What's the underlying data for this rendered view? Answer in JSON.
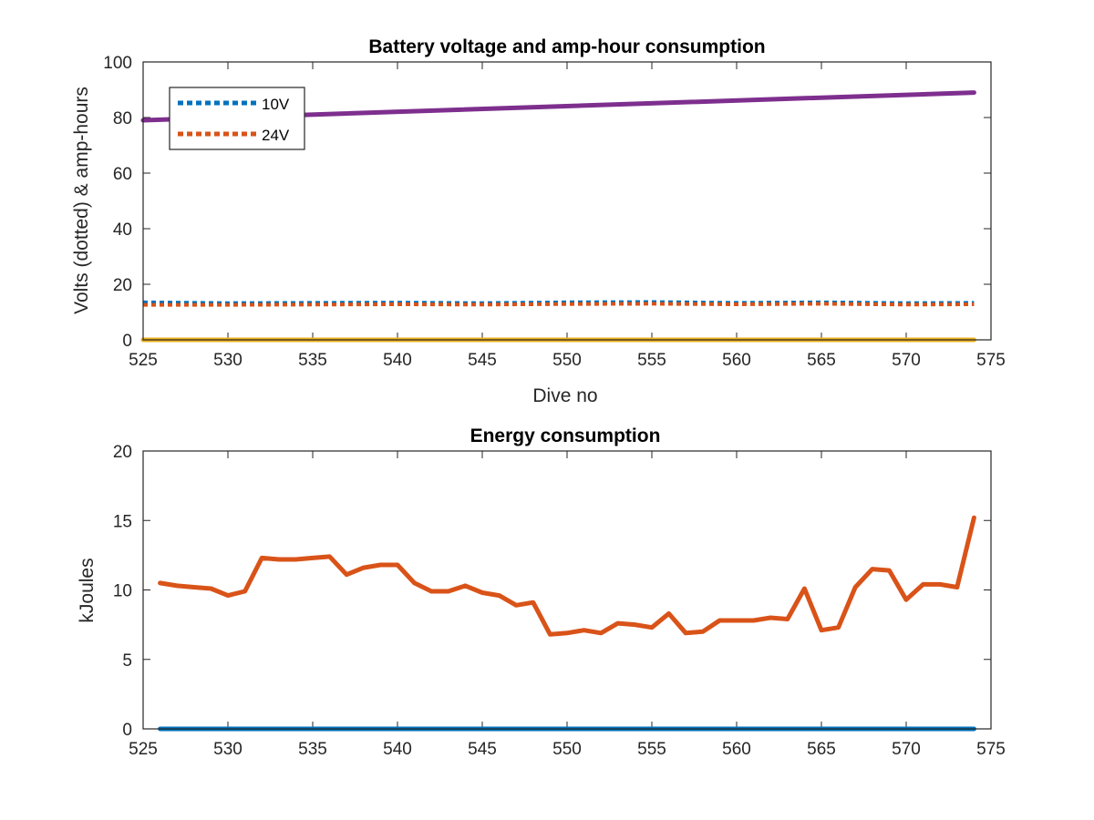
{
  "chart_data": [
    {
      "type": "line",
      "title": "Battery voltage and amp-hour consumption",
      "xlabel": "Dive no",
      "ylabel": "Volts (dotted) & amp-hours",
      "xlim": [
        525,
        575
      ],
      "ylim": [
        0,
        100
      ],
      "xticks": [
        525,
        530,
        535,
        540,
        545,
        550,
        555,
        560,
        565,
        570,
        575
      ],
      "yticks": [
        0,
        20,
        40,
        60,
        80,
        100
      ],
      "grid": false,
      "legend_position": "top-left",
      "series": [
        {
          "name": "10V",
          "style": "dotted",
          "color": "#0072BD",
          "x": [
            525,
            530,
            535,
            540,
            545,
            550,
            555,
            560,
            565,
            570,
            574
          ],
          "y": [
            13.5,
            13.2,
            13.3,
            13.4,
            13.2,
            13.5,
            13.6,
            13.3,
            13.5,
            13.2,
            13.3
          ]
        },
        {
          "name": "24V",
          "style": "dotted",
          "color": "#D95319",
          "x": [
            525,
            530,
            535,
            540,
            545,
            550,
            555,
            560,
            565,
            570,
            574
          ],
          "y": [
            12.6,
            12.6,
            12.7,
            12.8,
            12.7,
            12.9,
            13.0,
            12.8,
            13.0,
            12.7,
            12.8
          ]
        },
        {
          "style": "solid",
          "color": "#7E2F8E",
          "x": [
            525,
            574
          ],
          "y": [
            79,
            89
          ]
        },
        {
          "style": "solid",
          "color": "#EDB120",
          "x": [
            525,
            574
          ],
          "y": [
            0,
            0
          ]
        }
      ]
    },
    {
      "type": "line",
      "title": "Energy consumption",
      "xlabel": "",
      "ylabel": "kJoules",
      "xlim": [
        525,
        575
      ],
      "ylim": [
        0,
        20
      ],
      "xticks": [
        525,
        530,
        535,
        540,
        545,
        550,
        555,
        560,
        565,
        570,
        575
      ],
      "yticks": [
        0,
        5,
        10,
        15,
        20
      ],
      "grid": false,
      "series": [
        {
          "style": "solid",
          "color": "#0072BD",
          "x": [
            526,
            574
          ],
          "y": [
            0,
            0
          ]
        },
        {
          "style": "solid",
          "color": "#D95319",
          "x": [
            526,
            527,
            528,
            529,
            530,
            531,
            532,
            533,
            534,
            535,
            536,
            537,
            538,
            539,
            540,
            541,
            542,
            543,
            544,
            545,
            546,
            547,
            548,
            549,
            550,
            551,
            552,
            553,
            554,
            555,
            556,
            557,
            558,
            559,
            560,
            561,
            562,
            563,
            564,
            565,
            566,
            567,
            568,
            569,
            570,
            571,
            572,
            573,
            574
          ],
          "y": [
            10.5,
            10.3,
            10.2,
            10.1,
            9.6,
            9.9,
            12.3,
            12.2,
            12.2,
            12.3,
            12.4,
            11.1,
            11.6,
            11.8,
            11.8,
            10.5,
            9.9,
            9.9,
            10.3,
            9.8,
            9.6,
            8.9,
            9.1,
            6.8,
            6.9,
            7.1,
            6.9,
            7.6,
            7.5,
            7.3,
            8.3,
            6.9,
            7.0,
            7.8,
            7.8,
            7.8,
            8.0,
            7.9,
            10.1,
            7.1,
            7.3,
            10.2,
            11.5,
            11.4,
            9.3,
            10.4,
            10.4,
            10.2,
            15.2
          ]
        }
      ]
    }
  ]
}
